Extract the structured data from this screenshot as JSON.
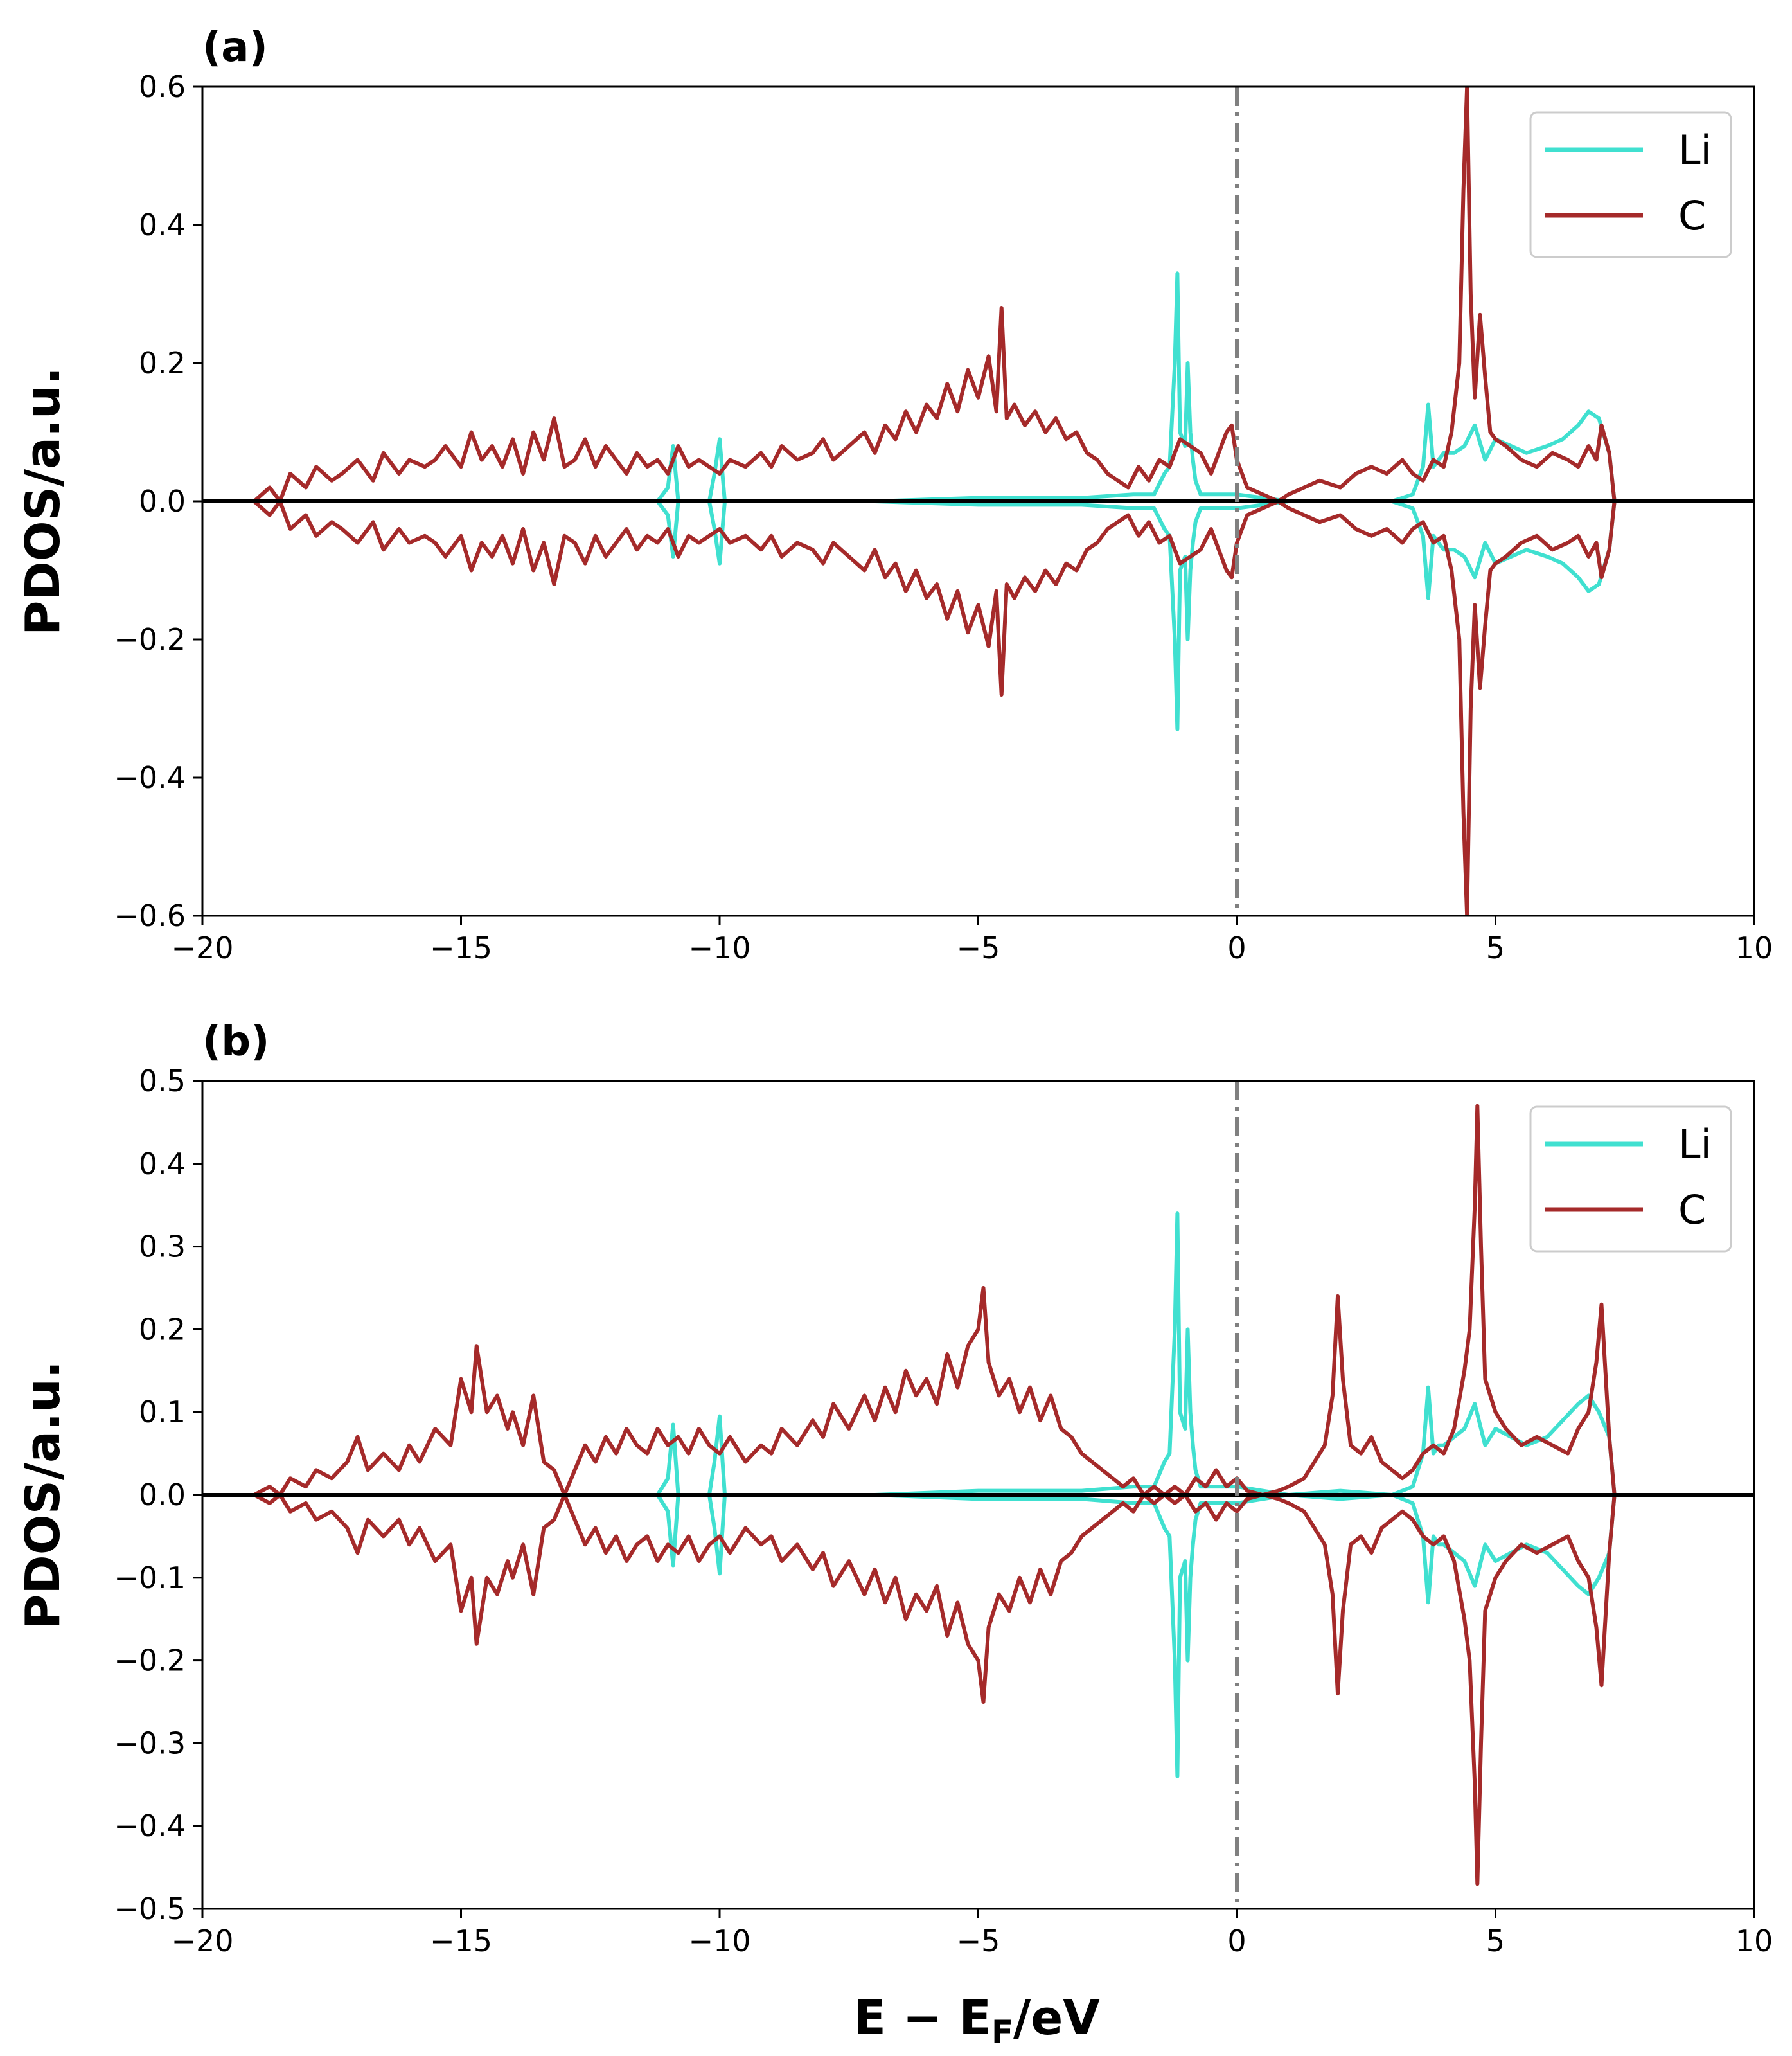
{
  "chart_data": [
    {
      "type": "line",
      "panel_label": "(a)",
      "xlabel_main": "E − E",
      "xlabel_sub": "F",
      "xlabel_tail": "/eV",
      "ylabel": "PDOS/a.u.",
      "xlim": [
        -20,
        10
      ],
      "ylim": [
        -0.6,
        0.6
      ],
      "xticks": [
        -20,
        -15,
        -10,
        -5,
        0,
        5,
        10
      ],
      "xtick_labels": [
        "−20",
        "−15",
        "−10",
        "−5",
        "0",
        "5",
        "10"
      ],
      "yticks": [
        -0.6,
        -0.4,
        -0.2,
        0.0,
        0.2,
        0.4,
        0.6
      ],
      "ytick_labels": [
        "−0.6",
        "−0.4",
        "−0.2",
        "0.0",
        "0.2",
        "0.4",
        "0.6"
      ],
      "fermi_level": 0,
      "legend": [
        "Li",
        "C"
      ],
      "legend_position": "top-right",
      "series": [
        {
          "name": "Li",
          "color": "#40e0d0",
          "x": [
            -19.0,
            -11.2,
            -11.0,
            -10.9,
            -10.8,
            -10.2,
            -10.1,
            -10.0,
            -9.9,
            -7.0,
            -5.0,
            -3.0,
            -2.0,
            -1.6,
            -1.4,
            -1.3,
            -1.2,
            -1.15,
            -1.1,
            -1.0,
            -0.95,
            -0.9,
            -0.85,
            -0.8,
            -0.7,
            -0.5,
            -0.3,
            0.0,
            0.5,
            1.0,
            2.0,
            3.0,
            3.4,
            3.6,
            3.7,
            3.8,
            3.9,
            4.0,
            4.2,
            4.4,
            4.6,
            4.8,
            5.0,
            5.3,
            5.6,
            6.0,
            6.3,
            6.6,
            6.8,
            7.0,
            7.2,
            7.3
          ],
          "values": [
            0.0,
            0.0,
            0.02,
            0.08,
            0.0,
            0.0,
            0.04,
            0.09,
            0.0,
            0.0,
            0.005,
            0.005,
            0.01,
            0.01,
            0.04,
            0.05,
            0.2,
            0.33,
            0.1,
            0.08,
            0.2,
            0.1,
            0.06,
            0.03,
            0.01,
            0.01,
            0.01,
            0.01,
            0.005,
            0.0,
            0.0,
            0.0,
            0.01,
            0.05,
            0.14,
            0.05,
            0.06,
            0.07,
            0.07,
            0.08,
            0.11,
            0.06,
            0.09,
            0.08,
            0.07,
            0.08,
            0.09,
            0.11,
            0.13,
            0.12,
            0.07,
            0.0
          ]
        },
        {
          "name": "C",
          "color": "#a52a2a",
          "x": [
            -19.0,
            -18.7,
            -18.5,
            -18.3,
            -18.0,
            -17.8,
            -17.5,
            -17.3,
            -17.0,
            -16.7,
            -16.5,
            -16.2,
            -16.0,
            -15.7,
            -15.5,
            -15.3,
            -15.0,
            -14.8,
            -14.6,
            -14.4,
            -14.2,
            -14.0,
            -13.8,
            -13.6,
            -13.4,
            -13.2,
            -13.0,
            -12.8,
            -12.6,
            -12.4,
            -12.2,
            -12.0,
            -11.8,
            -11.6,
            -11.4,
            -11.2,
            -11.0,
            -10.8,
            -10.6,
            -10.4,
            -10.2,
            -10.0,
            -9.8,
            -9.5,
            -9.2,
            -9.0,
            -8.8,
            -8.5,
            -8.2,
            -8.0,
            -7.8,
            -7.5,
            -7.2,
            -7.0,
            -6.8,
            -6.6,
            -6.4,
            -6.2,
            -6.0,
            -5.8,
            -5.6,
            -5.4,
            -5.2,
            -5.0,
            -4.8,
            -4.65,
            -4.55,
            -4.45,
            -4.3,
            -4.1,
            -3.9,
            -3.7,
            -3.5,
            -3.3,
            -3.1,
            -2.9,
            -2.7,
            -2.5,
            -2.3,
            -2.1,
            -1.9,
            -1.7,
            -1.5,
            -1.3,
            -1.1,
            -0.9,
            -0.7,
            -0.5,
            -0.3,
            -0.2,
            -0.1,
            0.0,
            0.2,
            0.5,
            0.8,
            1.0,
            1.3,
            1.6,
            2.0,
            2.3,
            2.6,
            2.9,
            3.2,
            3.4,
            3.6,
            3.8,
            4.0,
            4.15,
            4.3,
            4.38,
            4.45,
            4.52,
            4.6,
            4.7,
            4.8,
            4.9,
            5.0,
            5.2,
            5.5,
            5.8,
            6.1,
            6.4,
            6.6,
            6.8,
            6.95,
            7.05,
            7.2,
            7.3
          ],
          "values": [
            0.0,
            0.02,
            0.0,
            0.04,
            0.02,
            0.05,
            0.03,
            0.04,
            0.06,
            0.03,
            0.07,
            0.04,
            0.06,
            0.05,
            0.06,
            0.08,
            0.05,
            0.1,
            0.06,
            0.08,
            0.05,
            0.09,
            0.04,
            0.1,
            0.06,
            0.12,
            0.05,
            0.06,
            0.09,
            0.05,
            0.08,
            0.06,
            0.04,
            0.07,
            0.05,
            0.06,
            0.04,
            0.08,
            0.05,
            0.06,
            0.05,
            0.04,
            0.06,
            0.05,
            0.07,
            0.05,
            0.08,
            0.06,
            0.07,
            0.09,
            0.06,
            0.08,
            0.1,
            0.07,
            0.11,
            0.09,
            0.13,
            0.1,
            0.14,
            0.12,
            0.17,
            0.13,
            0.19,
            0.15,
            0.21,
            0.13,
            0.28,
            0.12,
            0.14,
            0.11,
            0.13,
            0.1,
            0.12,
            0.09,
            0.1,
            0.07,
            0.06,
            0.04,
            0.03,
            0.02,
            0.05,
            0.03,
            0.06,
            0.05,
            0.09,
            0.08,
            0.07,
            0.04,
            0.08,
            0.1,
            0.11,
            0.06,
            0.02,
            0.01,
            0.0,
            0.01,
            0.02,
            0.03,
            0.02,
            0.04,
            0.05,
            0.04,
            0.06,
            0.04,
            0.03,
            0.06,
            0.05,
            0.1,
            0.2,
            0.45,
            0.6,
            0.3,
            0.15,
            0.27,
            0.18,
            0.1,
            0.09,
            0.08,
            0.06,
            0.05,
            0.07,
            0.06,
            0.05,
            0.08,
            0.06,
            0.11,
            0.07,
            0.0
          ]
        }
      ]
    },
    {
      "type": "line",
      "panel_label": "(b)",
      "xlabel_main": "E − E",
      "xlabel_sub": "F",
      "xlabel_tail": "/eV",
      "ylabel": "PDOS/a.u.",
      "xlim": [
        -20,
        10
      ],
      "ylim": [
        -0.5,
        0.5
      ],
      "xticks": [
        -20,
        -15,
        -10,
        -5,
        0,
        5,
        10
      ],
      "xtick_labels": [
        "−20",
        "−15",
        "−10",
        "−5",
        "0",
        "5",
        "10"
      ],
      "yticks": [
        -0.5,
        -0.4,
        -0.3,
        -0.2,
        -0.1,
        0.0,
        0.1,
        0.2,
        0.3,
        0.4,
        0.5
      ],
      "ytick_labels": [
        "−0.5",
        "−0.4",
        "−0.3",
        "−0.2",
        "−0.1",
        "0.0",
        "0.1",
        "0.2",
        "0.3",
        "0.4",
        "0.5"
      ],
      "fermi_level": 0,
      "legend": [
        "Li",
        "C"
      ],
      "legend_position": "top-right",
      "series": [
        {
          "name": "Li",
          "color": "#40e0d0",
          "x": [
            -19.0,
            -11.2,
            -11.0,
            -10.9,
            -10.8,
            -10.2,
            -10.1,
            -10.0,
            -9.9,
            -7.0,
            -5.0,
            -3.0,
            -2.0,
            -1.6,
            -1.4,
            -1.3,
            -1.2,
            -1.15,
            -1.1,
            -1.0,
            -0.95,
            -0.9,
            -0.85,
            -0.8,
            -0.7,
            -0.5,
            -0.3,
            0.0,
            0.5,
            1.0,
            2.0,
            3.0,
            3.4,
            3.6,
            3.7,
            3.8,
            3.9,
            4.0,
            4.2,
            4.4,
            4.6,
            4.8,
            5.0,
            5.3,
            5.6,
            6.0,
            6.3,
            6.6,
            6.8,
            7.0,
            7.2,
            7.3
          ],
          "values": [
            0.0,
            0.0,
            0.02,
            0.085,
            0.0,
            0.0,
            0.04,
            0.095,
            0.0,
            0.0,
            0.005,
            0.005,
            0.01,
            0.01,
            0.04,
            0.05,
            0.2,
            0.34,
            0.1,
            0.08,
            0.2,
            0.1,
            0.06,
            0.03,
            0.01,
            0.01,
            0.01,
            0.01,
            0.005,
            0.0,
            0.005,
            0.0,
            0.01,
            0.05,
            0.13,
            0.05,
            0.06,
            0.06,
            0.07,
            0.08,
            0.11,
            0.06,
            0.08,
            0.07,
            0.06,
            0.07,
            0.09,
            0.11,
            0.12,
            0.1,
            0.07,
            0.0
          ]
        },
        {
          "name": "C",
          "color": "#a52a2a",
          "x": [
            -19.0,
            -18.7,
            -18.5,
            -18.3,
            -18.0,
            -17.8,
            -17.5,
            -17.2,
            -17.0,
            -16.8,
            -16.5,
            -16.2,
            -16.0,
            -15.8,
            -15.5,
            -15.2,
            -15.0,
            -14.8,
            -14.7,
            -14.5,
            -14.3,
            -14.1,
            -14.0,
            -13.8,
            -13.6,
            -13.4,
            -13.2,
            -13.0,
            -12.8,
            -12.6,
            -12.4,
            -12.2,
            -12.0,
            -11.8,
            -11.6,
            -11.4,
            -11.2,
            -11.0,
            -10.8,
            -10.6,
            -10.4,
            -10.2,
            -10.0,
            -9.8,
            -9.5,
            -9.2,
            -9.0,
            -8.8,
            -8.5,
            -8.2,
            -8.0,
            -7.8,
            -7.5,
            -7.2,
            -7.0,
            -6.8,
            -6.6,
            -6.4,
            -6.2,
            -6.0,
            -5.8,
            -5.6,
            -5.4,
            -5.2,
            -5.0,
            -4.9,
            -4.8,
            -4.6,
            -4.4,
            -4.2,
            -4.0,
            -3.8,
            -3.6,
            -3.4,
            -3.2,
            -3.0,
            -2.8,
            -2.6,
            -2.4,
            -2.2,
            -2.0,
            -1.8,
            -1.6,
            -1.4,
            -1.2,
            -1.0,
            -0.8,
            -0.6,
            -0.4,
            -0.2,
            0.0,
            0.2,
            0.5,
            0.8,
            1.0,
            1.3,
            1.5,
            1.7,
            1.85,
            1.95,
            2.05,
            2.2,
            2.4,
            2.6,
            2.8,
            3.0,
            3.2,
            3.4,
            3.6,
            3.8,
            4.0,
            4.2,
            4.4,
            4.5,
            4.6,
            4.65,
            4.72,
            4.8,
            4.9,
            5.0,
            5.2,
            5.5,
            5.8,
            6.1,
            6.4,
            6.6,
            6.8,
            6.95,
            7.05,
            7.2,
            7.3
          ],
          "values": [
            0.0,
            0.01,
            0.0,
            0.02,
            0.01,
            0.03,
            0.02,
            0.04,
            0.07,
            0.03,
            0.05,
            0.03,
            0.06,
            0.04,
            0.08,
            0.06,
            0.14,
            0.1,
            0.18,
            0.1,
            0.12,
            0.08,
            0.1,
            0.06,
            0.12,
            0.04,
            0.03,
            0.0,
            0.03,
            0.06,
            0.04,
            0.07,
            0.05,
            0.08,
            0.06,
            0.05,
            0.08,
            0.06,
            0.07,
            0.05,
            0.08,
            0.06,
            0.05,
            0.07,
            0.04,
            0.06,
            0.05,
            0.08,
            0.06,
            0.09,
            0.07,
            0.11,
            0.08,
            0.12,
            0.09,
            0.13,
            0.1,
            0.15,
            0.12,
            0.14,
            0.11,
            0.17,
            0.13,
            0.18,
            0.2,
            0.25,
            0.16,
            0.12,
            0.14,
            0.1,
            0.13,
            0.09,
            0.12,
            0.08,
            0.07,
            0.05,
            0.04,
            0.03,
            0.02,
            0.01,
            0.02,
            0.0,
            0.01,
            0.0,
            0.01,
            0.0,
            0.02,
            0.01,
            0.03,
            0.01,
            0.02,
            0.005,
            0.0,
            0.005,
            0.01,
            0.02,
            0.04,
            0.06,
            0.12,
            0.24,
            0.14,
            0.06,
            0.05,
            0.07,
            0.04,
            0.03,
            0.02,
            0.03,
            0.05,
            0.06,
            0.05,
            0.08,
            0.15,
            0.2,
            0.35,
            0.47,
            0.3,
            0.14,
            0.12,
            0.1,
            0.08,
            0.06,
            0.07,
            0.06,
            0.05,
            0.08,
            0.1,
            0.16,
            0.23,
            0.07,
            0.0
          ]
        }
      ]
    }
  ]
}
